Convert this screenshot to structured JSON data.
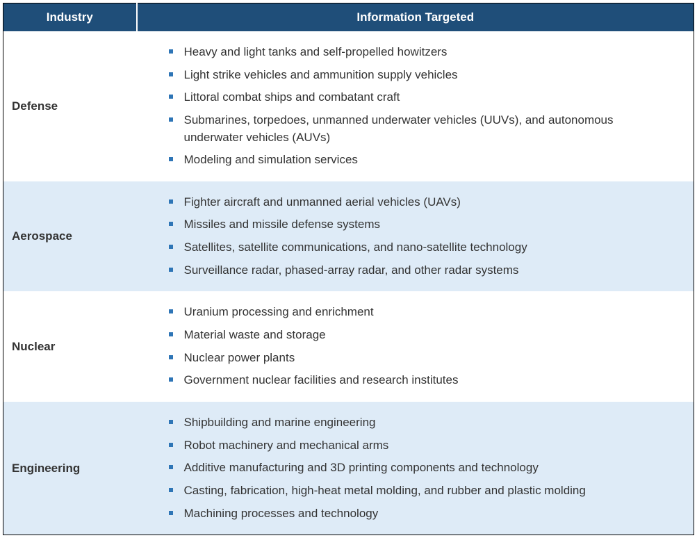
{
  "table": {
    "headers": {
      "industry": "Industry",
      "information": "Information Targeted"
    },
    "colors": {
      "header_bg": "#1f4e79",
      "header_text": "#ffffff",
      "row_odd_bg": "#ffffff",
      "row_even_bg": "#deebf7",
      "bullet_color": "#2e75b6",
      "text_color": "#333333"
    },
    "rows": [
      {
        "industry": "Defense",
        "items": [
          "Heavy and light tanks and self-propelled howitzers",
          "Light strike vehicles and ammunition supply vehicles",
          "Littoral combat ships and combatant craft",
          "Submarines, torpedoes, unmanned underwater vehicles (UUVs), and autonomous underwater vehicles (AUVs)",
          "Modeling and simulation services"
        ]
      },
      {
        "industry": "Aerospace",
        "items": [
          "Fighter aircraft and unmanned aerial vehicles (UAVs)",
          "Missiles and missile defense systems",
          "Satellites, satellite communications, and nano-satellite technology",
          "Surveillance radar, phased-array radar, and other radar systems"
        ]
      },
      {
        "industry": "Nuclear",
        "items": [
          "Uranium processing and enrichment",
          "Material waste and storage",
          "Nuclear power plants",
          "Government nuclear facilities and research institutes"
        ]
      },
      {
        "industry": "Engineering",
        "items": [
          "Shipbuilding and marine engineering",
          "Robot machinery and mechanical arms",
          "Additive manufacturing and 3D printing components and technology",
          "Casting, fabrication, high-heat metal molding, and rubber and plastic molding",
          "Machining processes and technology"
        ]
      }
    ]
  }
}
